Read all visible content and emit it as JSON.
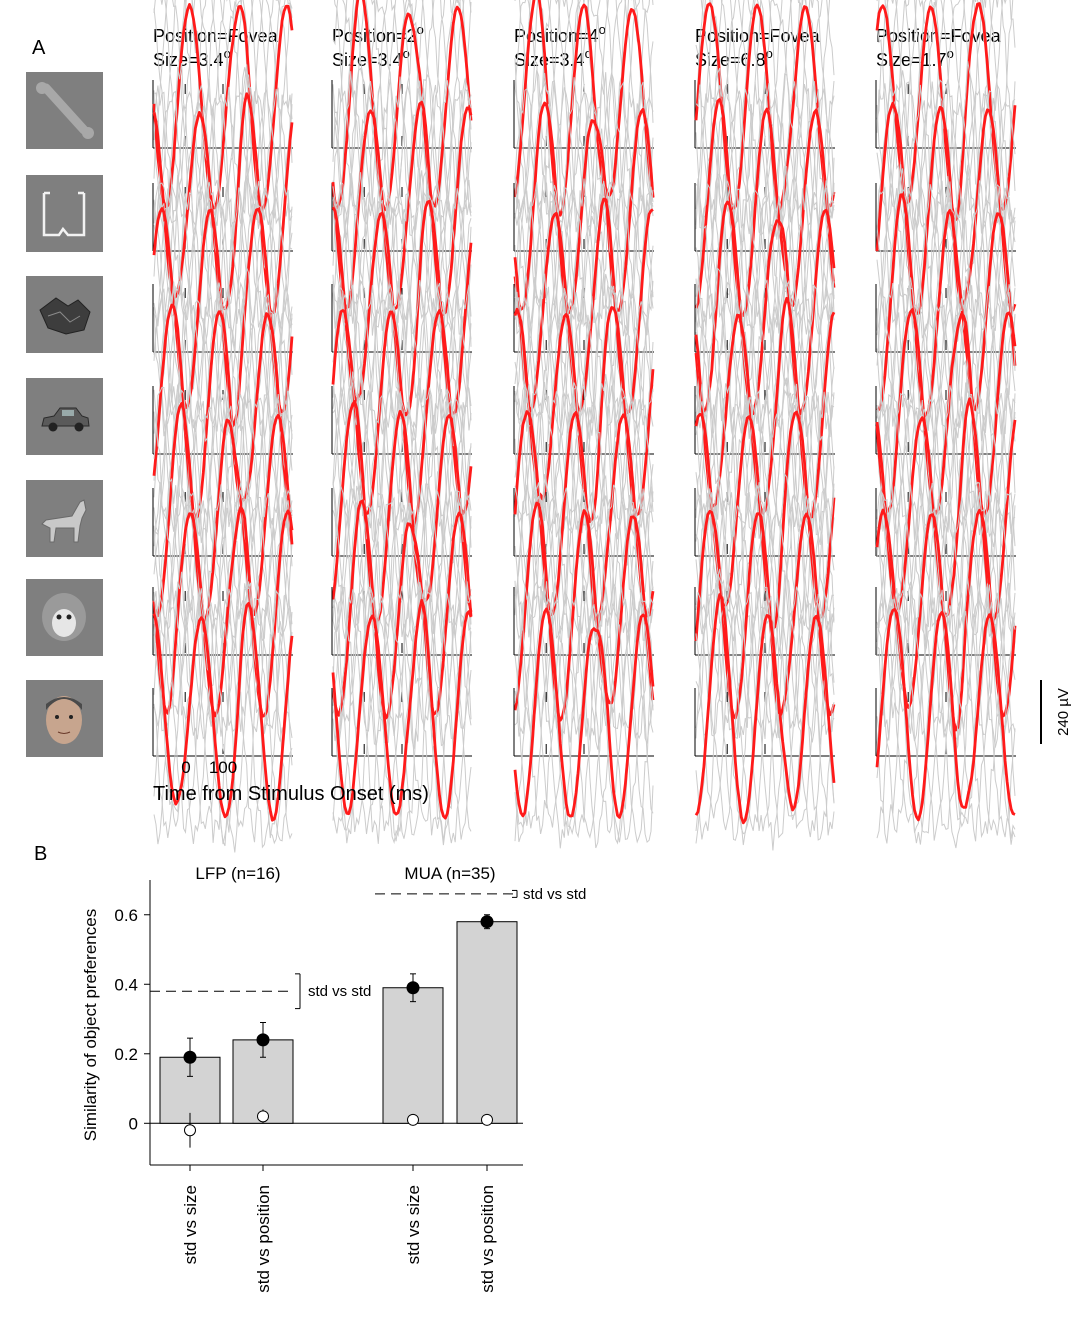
{
  "panel_a": {
    "label": "A",
    "columns": [
      {
        "line1": "Position=Fovea",
        "line2": "Size=3.4",
        "unit": "o"
      },
      {
        "line1": "Position=2",
        "line1_unit": "o",
        "line2": "Size=3.4",
        "unit": "o"
      },
      {
        "line1": "Position=4",
        "line1_unit": "o",
        "line2": "Size=3.4",
        "unit": "o"
      },
      {
        "line1": "Position=Fovea",
        "line2": "Size=6.8",
        "unit": "o"
      },
      {
        "line1": "Position=Fovea",
        "line2": "Size=1.7",
        "unit": "o"
      }
    ],
    "objects": [
      {
        "name": "bone",
        "icon": "bone-icon"
      },
      {
        "name": "outline shape",
        "icon": "outline-shape-icon"
      },
      {
        "name": "rock",
        "icon": "rock-icon"
      },
      {
        "name": "car",
        "icon": "car-icon"
      },
      {
        "name": "dog",
        "icon": "dog-icon"
      },
      {
        "name": "monkey",
        "icon": "monkey-icon"
      },
      {
        "name": "face",
        "icon": "face-icon"
      }
    ],
    "time_ticks": [
      "0",
      "100"
    ],
    "xlabel": "Time from Stimulus Onset (ms)",
    "scale_bar": "240 µV",
    "colors": {
      "mean_trace": "#ff1a1a",
      "trial_traces": "#cccccc",
      "stimulus_bg": "#7f7f7f"
    }
  },
  "panel_b": {
    "label": "B",
    "ylabel": "Similarity of object preferences",
    "yticks": [
      "0",
      "0.2",
      "0.4",
      "0.6"
    ]
  },
  "chart_data": {
    "type": "bar",
    "ylim": [
      -0.12,
      0.7
    ],
    "groups": [
      {
        "name": "LFP (n=16)",
        "reference_label": "std vs std",
        "reference_value": 0.38,
        "reference_err": 0.05
      },
      {
        "name": "MUA (n=35)",
        "reference_label": "std vs std",
        "reference_value": 0.66,
        "reference_err": 0.01
      }
    ],
    "categories": [
      "std vs size",
      "std vs position",
      "std vs size",
      "std vs position"
    ],
    "category_group": [
      0,
      0,
      1,
      1
    ],
    "values": [
      0.19,
      0.24,
      0.39,
      0.58
    ],
    "filled_points": [
      0.19,
      0.24,
      0.39,
      0.58
    ],
    "filled_err": [
      0.055,
      0.05,
      0.04,
      0.02
    ],
    "open_points": [
      -0.02,
      0.02,
      0.01,
      0.01
    ],
    "open_err": [
      0.05,
      0.02,
      0.01,
      0.01
    ],
    "colors": {
      "bar": "#d3d3d3",
      "filled_marker": "#000000",
      "open_marker": "#ffffff"
    }
  }
}
